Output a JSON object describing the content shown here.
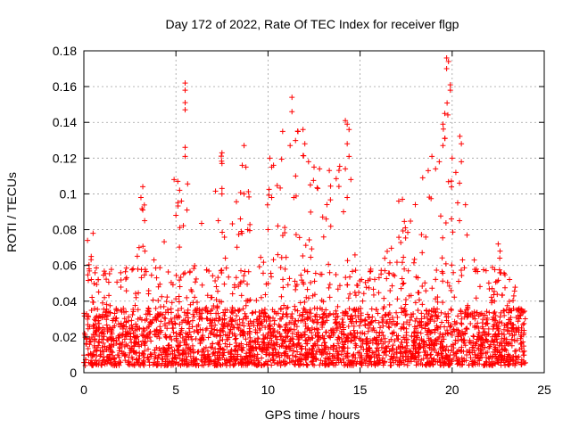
{
  "chart_data": {
    "type": "scatter",
    "title": "Day 172 of 2022, Rate Of TEC Index for receiver flgp",
    "xlabel": "GPS time / hours",
    "ylabel": "ROTI / TECUs",
    "xlim": [
      0,
      25
    ],
    "ylim": [
      0,
      0.18
    ],
    "xticks": [
      0,
      5,
      10,
      15,
      20,
      25
    ],
    "xtick_labels": [
      "0",
      "5",
      "10",
      "15",
      "20",
      "25"
    ],
    "yticks": [
      0,
      0.02,
      0.04,
      0.06,
      0.08,
      0.1,
      0.12,
      0.14,
      0.16,
      0.18
    ],
    "ytick_labels": [
      "0",
      "0.02",
      "0.04",
      "0.06",
      "0.08",
      "0.1",
      "0.12",
      "0.14",
      "0.16",
      "0.18"
    ],
    "grid": true,
    "marker": "+",
    "color": "#ff0000",
    "data_x_range": [
      0,
      24
    ],
    "envelope": [
      [
        0,
        0.05
      ],
      [
        0.3,
        0.078
      ],
      [
        1,
        0.055
      ],
      [
        2,
        0.06
      ],
      [
        3,
        0.07
      ],
      [
        3.2,
        0.104
      ],
      [
        4,
        0.06
      ],
      [
        5,
        0.108
      ],
      [
        5.2,
        0.09
      ],
      [
        5.5,
        0.162
      ],
      [
        6,
        0.07
      ],
      [
        7.5,
        0.123
      ],
      [
        8,
        0.08
      ],
      [
        8.7,
        0.127
      ],
      [
        9.5,
        0.08
      ],
      [
        10.2,
        0.12
      ],
      [
        11.5,
        0.154
      ],
      [
        12,
        0.12
      ],
      [
        13,
        0.11
      ],
      [
        14.3,
        0.141
      ],
      [
        15,
        0.08
      ],
      [
        16,
        0.06
      ],
      [
        17,
        0.09
      ],
      [
        18,
        0.09
      ],
      [
        19,
        0.12
      ],
      [
        19.8,
        0.176
      ],
      [
        20.5,
        0.128
      ],
      [
        21,
        0.07
      ],
      [
        22,
        0.05
      ],
      [
        22.5,
        0.072
      ],
      [
        23,
        0.05
      ],
      [
        24,
        0.045
      ]
    ],
    "spike_points": [
      {
        "x": 0.2,
        "y": 0.074
      },
      {
        "x": 0.5,
        "y": 0.078
      },
      {
        "x": 0.4,
        "y": 0.065
      },
      {
        "x": 3.1,
        "y": 0.098
      },
      {
        "x": 3.2,
        "y": 0.104
      },
      {
        "x": 3.2,
        "y": 0.091
      },
      {
        "x": 3.3,
        "y": 0.085
      },
      {
        "x": 3.0,
        "y": 0.07
      },
      {
        "x": 4.9,
        "y": 0.108
      },
      {
        "x": 5.1,
        "y": 0.107
      },
      {
        "x": 5.2,
        "y": 0.102
      },
      {
        "x": 5.0,
        "y": 0.088
      },
      {
        "x": 5.3,
        "y": 0.096
      },
      {
        "x": 5.5,
        "y": 0.162
      },
      {
        "x": 5.5,
        "y": 0.158
      },
      {
        "x": 5.5,
        "y": 0.151
      },
      {
        "x": 5.5,
        "y": 0.147
      },
      {
        "x": 5.5,
        "y": 0.126
      },
      {
        "x": 5.5,
        "y": 0.121
      },
      {
        "x": 5.6,
        "y": 0.091
      },
      {
        "x": 7.5,
        "y": 0.123
      },
      {
        "x": 7.5,
        "y": 0.117
      },
      {
        "x": 7.5,
        "y": 0.103
      },
      {
        "x": 7.5,
        "y": 0.1
      },
      {
        "x": 7.3,
        "y": 0.085
      },
      {
        "x": 8.6,
        "y": 0.116
      },
      {
        "x": 8.7,
        "y": 0.127
      },
      {
        "x": 8.8,
        "y": 0.115
      },
      {
        "x": 8.7,
        "y": 0.1
      },
      {
        "x": 8.5,
        "y": 0.086
      },
      {
        "x": 8.9,
        "y": 0.08
      },
      {
        "x": 10.1,
        "y": 0.12
      },
      {
        "x": 10.2,
        "y": 0.115
      },
      {
        "x": 10.3,
        "y": 0.116
      },
      {
        "x": 10.2,
        "y": 0.098
      },
      {
        "x": 10.0,
        "y": 0.08
      },
      {
        "x": 11.3,
        "y": 0.154
      },
      {
        "x": 11.3,
        "y": 0.146
      },
      {
        "x": 11.2,
        "y": 0.127
      },
      {
        "x": 11.5,
        "y": 0.11
      },
      {
        "x": 11.4,
        "y": 0.098
      },
      {
        "x": 11.9,
        "y": 0.136
      },
      {
        "x": 12.0,
        "y": 0.128
      },
      {
        "x": 12.2,
        "y": 0.118
      },
      {
        "x": 12.5,
        "y": 0.115
      },
      {
        "x": 12.8,
        "y": 0.114
      },
      {
        "x": 12.3,
        "y": 0.105
      },
      {
        "x": 12.7,
        "y": 0.103
      },
      {
        "x": 13.2,
        "y": 0.094
      },
      {
        "x": 14.2,
        "y": 0.141
      },
      {
        "x": 14.3,
        "y": 0.139
      },
      {
        "x": 14.4,
        "y": 0.136
      },
      {
        "x": 14.3,
        "y": 0.128
      },
      {
        "x": 14.4,
        "y": 0.121
      },
      {
        "x": 14.2,
        "y": 0.114
      },
      {
        "x": 14.5,
        "y": 0.108
      },
      {
        "x": 14.3,
        "y": 0.098
      },
      {
        "x": 14.1,
        "y": 0.09
      },
      {
        "x": 17.1,
        "y": 0.096
      },
      {
        "x": 17.3,
        "y": 0.097
      },
      {
        "x": 18.0,
        "y": 0.094
      },
      {
        "x": 18.4,
        "y": 0.109
      },
      {
        "x": 18.7,
        "y": 0.113
      },
      {
        "x": 18.9,
        "y": 0.121
      },
      {
        "x": 19.1,
        "y": 0.114
      },
      {
        "x": 19.3,
        "y": 0.118
      },
      {
        "x": 19.5,
        "y": 0.139
      },
      {
        "x": 19.6,
        "y": 0.131
      },
      {
        "x": 19.5,
        "y": 0.127
      },
      {
        "x": 19.7,
        "y": 0.176
      },
      {
        "x": 19.8,
        "y": 0.174
      },
      {
        "x": 19.7,
        "y": 0.17
      },
      {
        "x": 19.9,
        "y": 0.161
      },
      {
        "x": 19.9,
        "y": 0.158
      },
      {
        "x": 19.6,
        "y": 0.145
      },
      {
        "x": 20.0,
        "y": 0.12
      },
      {
        "x": 20.2,
        "y": 0.112
      },
      {
        "x": 20.4,
        "y": 0.106
      },
      {
        "x": 20.5,
        "y": 0.128
      },
      {
        "x": 20.5,
        "y": 0.118
      },
      {
        "x": 20.3,
        "y": 0.095
      },
      {
        "x": 20.4,
        "y": 0.085
      },
      {
        "x": 22.5,
        "y": 0.072
      },
      {
        "x": 22.6,
        "y": 0.068
      },
      {
        "x": 21.2,
        "y": 0.063
      }
    ]
  }
}
